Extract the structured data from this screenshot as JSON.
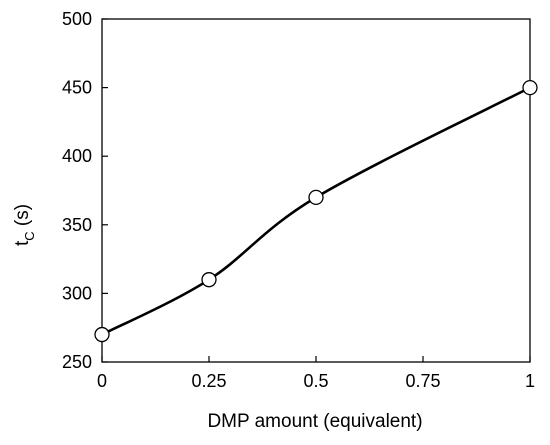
{
  "chart_data": {
    "type": "line",
    "title": "",
    "xlabel": "DMP amount (equivalent)",
    "ylabel_main": "t",
    "ylabel_sub": "C",
    "ylabel_unit": " (s)",
    "xlim": [
      0,
      1
    ],
    "ylim": [
      250,
      500
    ],
    "xticks": [
      0,
      0.25,
      0.5,
      0.75,
      1
    ],
    "xtick_labels": [
      "0",
      "0.25",
      "0.5",
      "0.75",
      "1"
    ],
    "yticks": [
      250,
      300,
      350,
      400,
      450,
      500
    ],
    "ytick_labels": [
      "250",
      "300",
      "350",
      "400",
      "450",
      "500"
    ],
    "grid": false,
    "legend": "none",
    "series": [
      {
        "x": [
          0,
          0.25,
          0.5,
          1
        ],
        "y": [
          270,
          310,
          370,
          450
        ],
        "line": "smooth",
        "marker": "open-circle",
        "color": "#000000"
      }
    ]
  }
}
